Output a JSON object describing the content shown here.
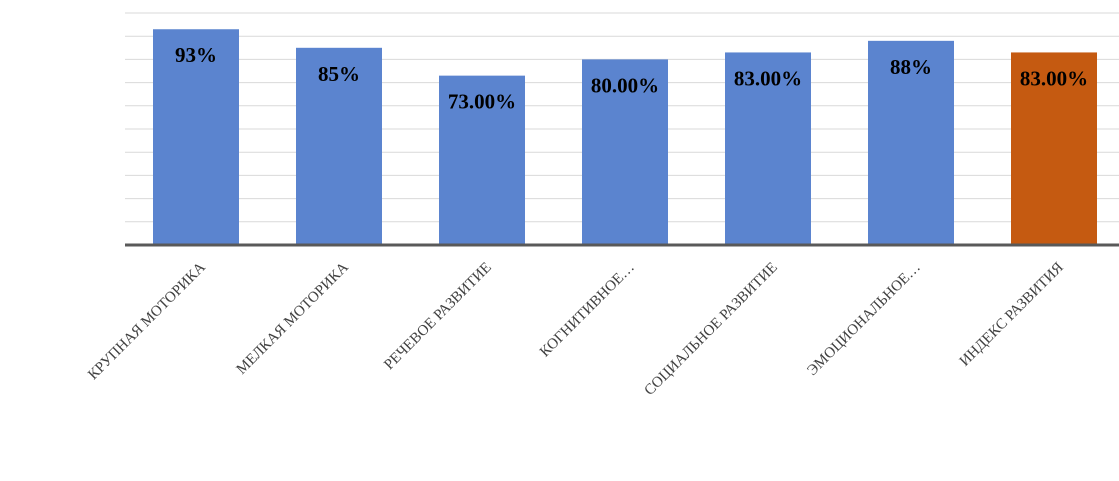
{
  "chart_data": {
    "type": "bar",
    "title": "",
    "xlabel": "",
    "ylabel": "",
    "categories": [
      "КРУПНАЯ МОТОРИКА",
      "МЕЛКАЯ МОТОРИКА",
      "РЕЧЕВОЕ РАЗВИТИЕ",
      "КОГНИТИВНОЕ…",
      "СОЦИАЛЬНОЕ РАЗВИТИЕ",
      "ЭМОЦИОНАЛЬНОЕ…",
      "ИНДЕКС РАЗВИТИЯ"
    ],
    "values": [
      93,
      85,
      73,
      80,
      83,
      88,
      83
    ],
    "data_labels": [
      "93%",
      "85%",
      "73.00%",
      "80.00%",
      "83.00%",
      "88%",
      "83.00%"
    ],
    "bar_colors": [
      "#5b84cf",
      "#5b84cf",
      "#5b84cf",
      "#5b84cf",
      "#5b84cf",
      "#5b84cf",
      "#c55a11"
    ],
    "ylim": [
      0,
      100
    ],
    "y_gridlines": 10,
    "grid": true,
    "legend": "none"
  }
}
